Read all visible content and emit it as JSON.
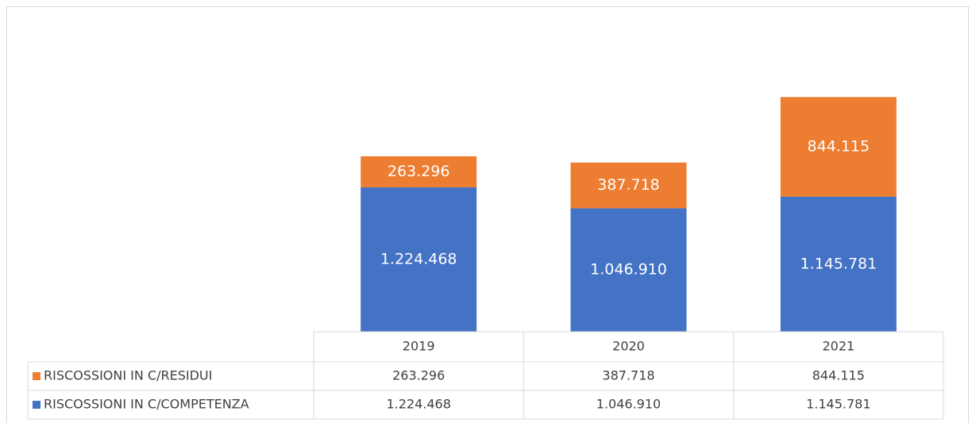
{
  "chart_data": {
    "type": "bar",
    "stacked": true,
    "categories": [
      "2019",
      "2020",
      "2021"
    ],
    "series": [
      {
        "name": "RISCOSSIONI IN C/RESIDUI",
        "color": "#ed7d31",
        "values": [
          263296,
          387718,
          844115
        ],
        "value_labels": [
          "263.296",
          "387.718",
          "844.115"
        ]
      },
      {
        "name": "RISCOSSIONI IN C/COMPETENZA",
        "color": "#4472c4",
        "values": [
          1224468,
          1046910,
          1145781
        ],
        "value_labels": [
          "1.224.468",
          "1.046.910",
          "1.145.781"
        ]
      }
    ],
    "ylim": [
      0,
      2500000
    ]
  }
}
